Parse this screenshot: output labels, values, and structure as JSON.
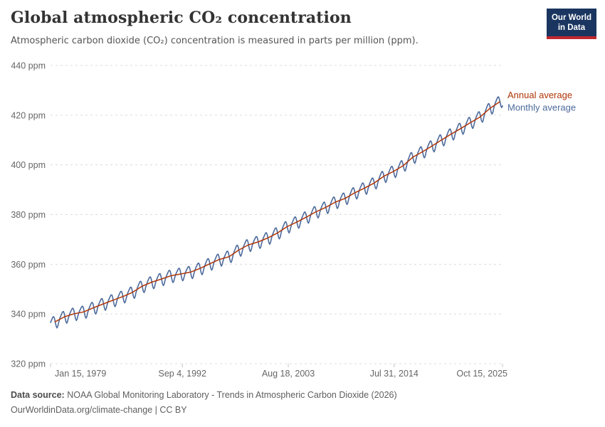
{
  "header": {
    "title": "Global atmospheric CO₂ concentration",
    "subtitle": "Atmospheric carbon dioxide (CO₂) concentration is measured in parts per million (ppm).",
    "logo": {
      "line1": "Our World",
      "line2": "in Data",
      "bg_color": "#1a3660",
      "accent_color": "#c0282f"
    }
  },
  "chart_data": {
    "type": "line",
    "title": "Global atmospheric CO₂ concentration",
    "unit": "ppm",
    "x_range": [
      1979.038,
      2025.786
    ],
    "y_range": [
      320,
      440
    ],
    "grid": "horizontal-dashed",
    "grid_color": "#dcdcdc",
    "axis_text_color": "#666666",
    "tick_mark_color": "#c4c4c4",
    "legend_position": "right-of-line-end",
    "y_ticks": [
      {
        "value": 320,
        "label": "320 ppm"
      },
      {
        "value": 340,
        "label": "340 ppm"
      },
      {
        "value": 360,
        "label": "360 ppm"
      },
      {
        "value": 380,
        "label": "380 ppm"
      },
      {
        "value": 400,
        "label": "400 ppm"
      },
      {
        "value": 420,
        "label": "420 ppm"
      },
      {
        "value": 440,
        "label": "440 ppm"
      }
    ],
    "x_ticks": [
      {
        "t": 1979.038,
        "label": "Jan 15, 1979"
      },
      {
        "t": 1992.675,
        "label": "Sep 4, 1992"
      },
      {
        "t": 2003.627,
        "label": "Aug 18, 2003"
      },
      {
        "t": 2014.578,
        "label": "Jul 31, 2014"
      },
      {
        "t": 2025.786,
        "label": "Oct 15, 2025"
      }
    ],
    "series": [
      {
        "name": "Annual average",
        "color": "#B13507",
        "years": [
          1979,
          1980,
          1981,
          1982,
          1983,
          1984,
          1985,
          1986,
          1987,
          1988,
          1989,
          1990,
          1991,
          1992,
          1993,
          1994,
          1995,
          1996,
          1997,
          1998,
          1999,
          2000,
          2001,
          2002,
          2003,
          2004,
          2005,
          2006,
          2007,
          2008,
          2009,
          2010,
          2011,
          2012,
          2013,
          2014,
          2015,
          2016,
          2017,
          2018,
          2019,
          2020,
          2021,
          2022,
          2023,
          2024,
          2025
        ],
        "values": [
          336.85,
          338.91,
          340.11,
          340.86,
          342.53,
          344.07,
          345.54,
          346.97,
          348.68,
          351.16,
          352.78,
          354.05,
          355.39,
          356.09,
          356.83,
          358.33,
          360.17,
          361.93,
          363.04,
          365.7,
          367.79,
          368.96,
          370.57,
          372.58,
          375.14,
          376.95,
          378.98,
          381.15,
          382.9,
          385.02,
          386.5,
          388.76,
          390.63,
          392.65,
          395.4,
          397.34,
          399.65,
          403.07,
          405.22,
          407.61,
          410.07,
          412.44,
          414.7,
          417.08,
          419.35,
          422.8,
          425.4
        ]
      },
      {
        "name": "Monthly average",
        "color": "#4C6A9C",
        "derived_from": "annual-baseline-plus-seasonal-cycle",
        "monthly_seasonal_offsets_ppm": [
          0.7,
          1.3,
          1.9,
          2.4,
          2.3,
          1.3,
          -0.5,
          -2.1,
          -2.9,
          -2.4,
          -1.1,
          -0.1
        ],
        "last_month": "Oct 2025"
      }
    ]
  },
  "footer": {
    "datasource_label": "Data source:",
    "datasource_text": "NOAA Global Monitoring Laboratory - Trends in Atmospheric Carbon Dioxide (2026)",
    "note": "OurWorldinData.org/climate-change | CC BY"
  }
}
